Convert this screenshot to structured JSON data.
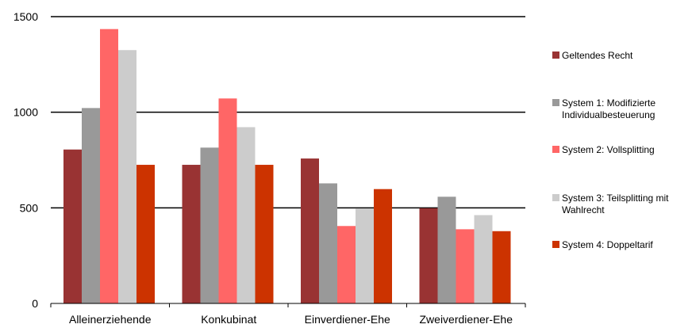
{
  "chart_data": {
    "type": "bar",
    "categories": [
      "Alleinerziehende",
      "Konkubinat",
      "Einverdiener-Ehe",
      "Zweiverdiener-Ehe"
    ],
    "series": [
      {
        "name": "Geltendes Recht",
        "color": "#993333",
        "values": [
          805,
          725,
          758,
          498
        ]
      },
      {
        "name": "System 1: Modifizierte Individualbesteuerung",
        "color": "#999999",
        "values": [
          1022,
          815,
          628,
          558
        ]
      },
      {
        "name": "System 2: Vollsplitting",
        "color": "#ff6666",
        "values": [
          1435,
          1072,
          405,
          388
        ]
      },
      {
        "name": "System 3: Teilsplitting mit Wahlrecht",
        "color": "#cccccc",
        "values": [
          1325,
          922,
          495,
          462
        ]
      },
      {
        "name": "System 4: Doppeltarif",
        "color": "#cc3300",
        "values": [
          725,
          725,
          598,
          378
        ]
      }
    ],
    "ylim": [
      0,
      1500
    ],
    "yticks": [
      0,
      500,
      1000,
      1500
    ],
    "grid": true,
    "legend_position": "right"
  }
}
